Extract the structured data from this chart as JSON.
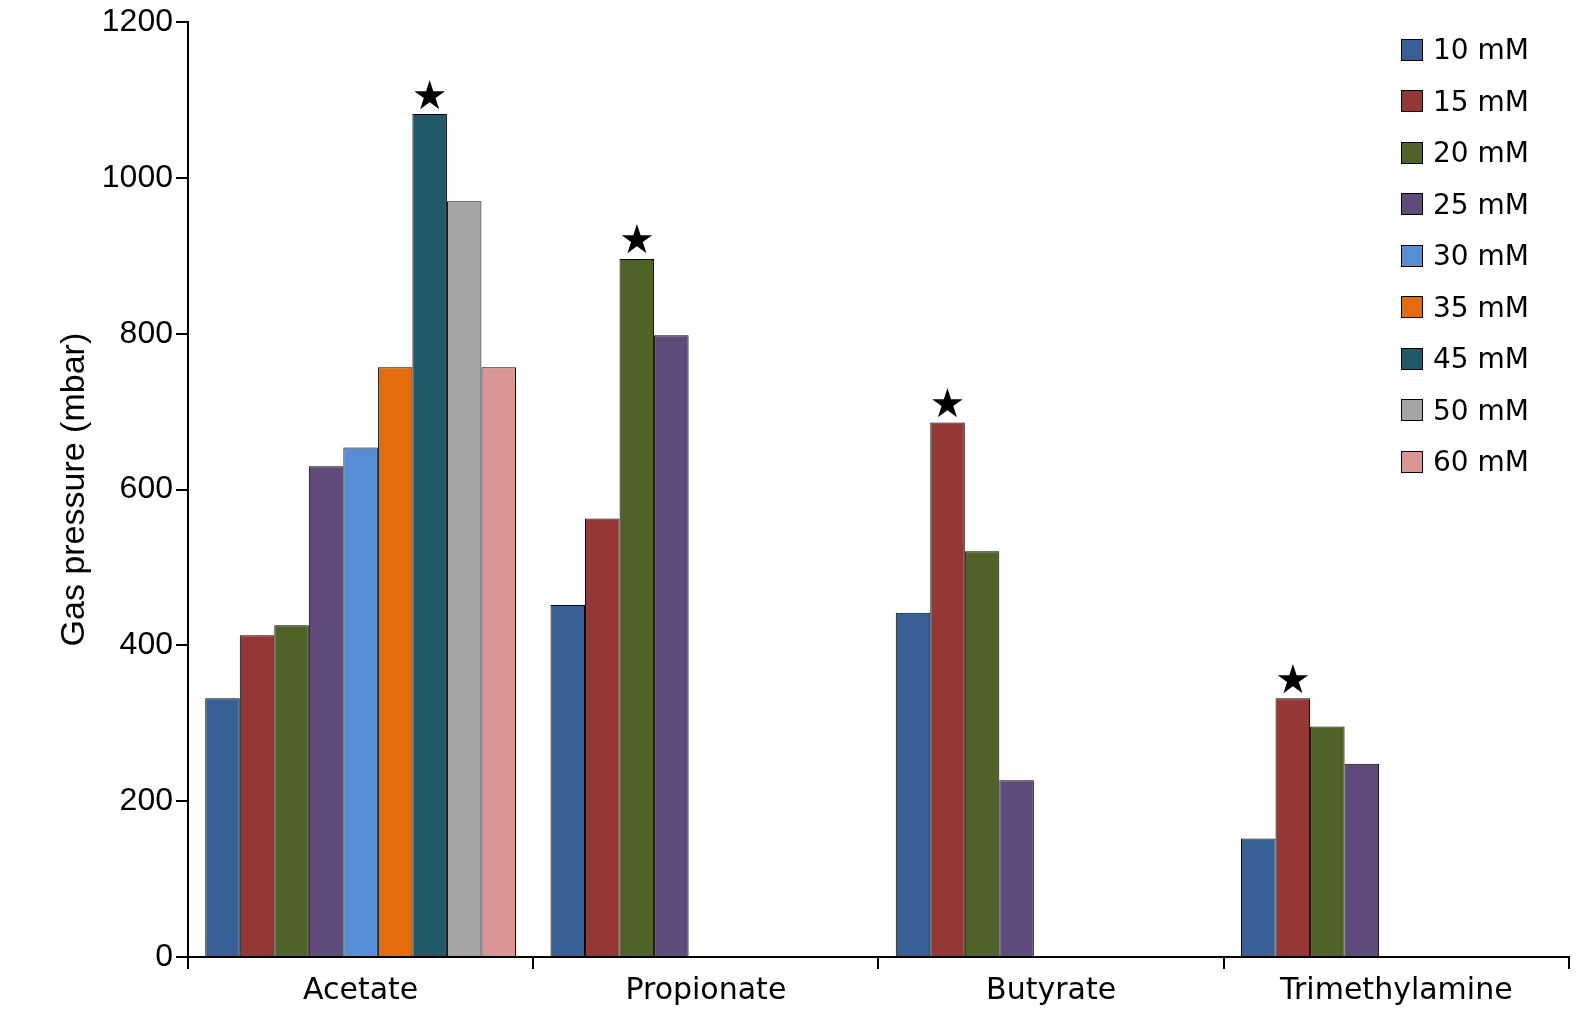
{
  "chart_data": {
    "type": "bar",
    "ylabel": "Gas pressure (mbar)",
    "categories": [
      "Acetate",
      "Propionate",
      "Butyrate",
      "Trimethylamine"
    ],
    "series": [
      {
        "name": "10 mM",
        "color": "#386096",
        "values": [
          332,
          452,
          442,
          152
        ]
      },
      {
        "name": "15 mM",
        "color": "#953735",
        "values": [
          413,
          563,
          686,
          332
        ]
      },
      {
        "name": "20 mM",
        "color": "#4f6228",
        "values": [
          426,
          896,
          521,
          296
        ]
      },
      {
        "name": "25 mM",
        "color": "#604a7b",
        "values": [
          630,
          798,
          227,
          248
        ]
      },
      {
        "name": "30 mM",
        "color": "#558ed5",
        "values": [
          654,
          null,
          null,
          null
        ]
      },
      {
        "name": "35 mM",
        "color": "#e46c0a",
        "values": [
          757,
          null,
          null,
          null
        ]
      },
      {
        "name": "45 mM",
        "color": "#215968",
        "values": [
          1082,
          null,
          null,
          null
        ]
      },
      {
        "name": "50 mM",
        "color": "#a6a6a6",
        "values": [
          970,
          null,
          null,
          null
        ]
      },
      {
        "name": "60 mM",
        "color": "#d99694",
        "values": [
          757,
          null,
          null,
          null
        ]
      }
    ],
    "ylim": [
      0,
      1200
    ],
    "yticks": [
      0,
      200,
      400,
      600,
      800,
      1000,
      1200
    ],
    "grid": false,
    "legend": "top right",
    "annotations": [
      "★",
      "★",
      "★",
      "★"
    ]
  }
}
